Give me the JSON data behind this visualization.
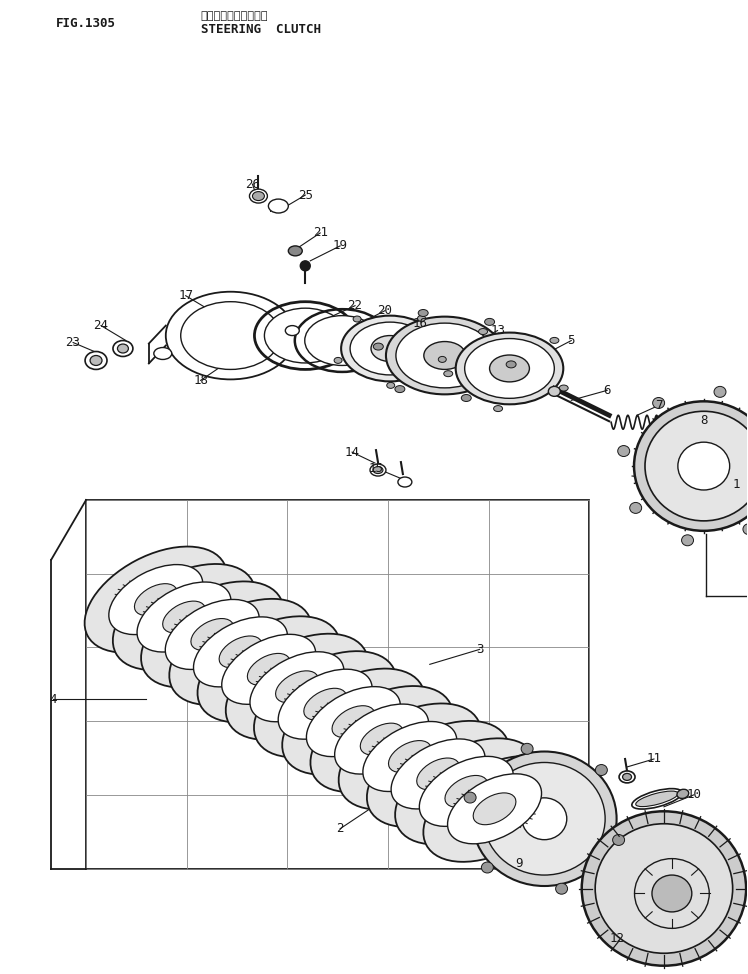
{
  "title_jp": "ステアリングクラッチ",
  "title_en": "STEERING  CLUTCH",
  "fig_label": "FIG.1305",
  "background_color": "#ffffff",
  "line_color": "#1a1a1a",
  "text_color": "#1a1a1a",
  "fig_size": [
    7.48,
    9.74
  ],
  "dpi": 100
}
